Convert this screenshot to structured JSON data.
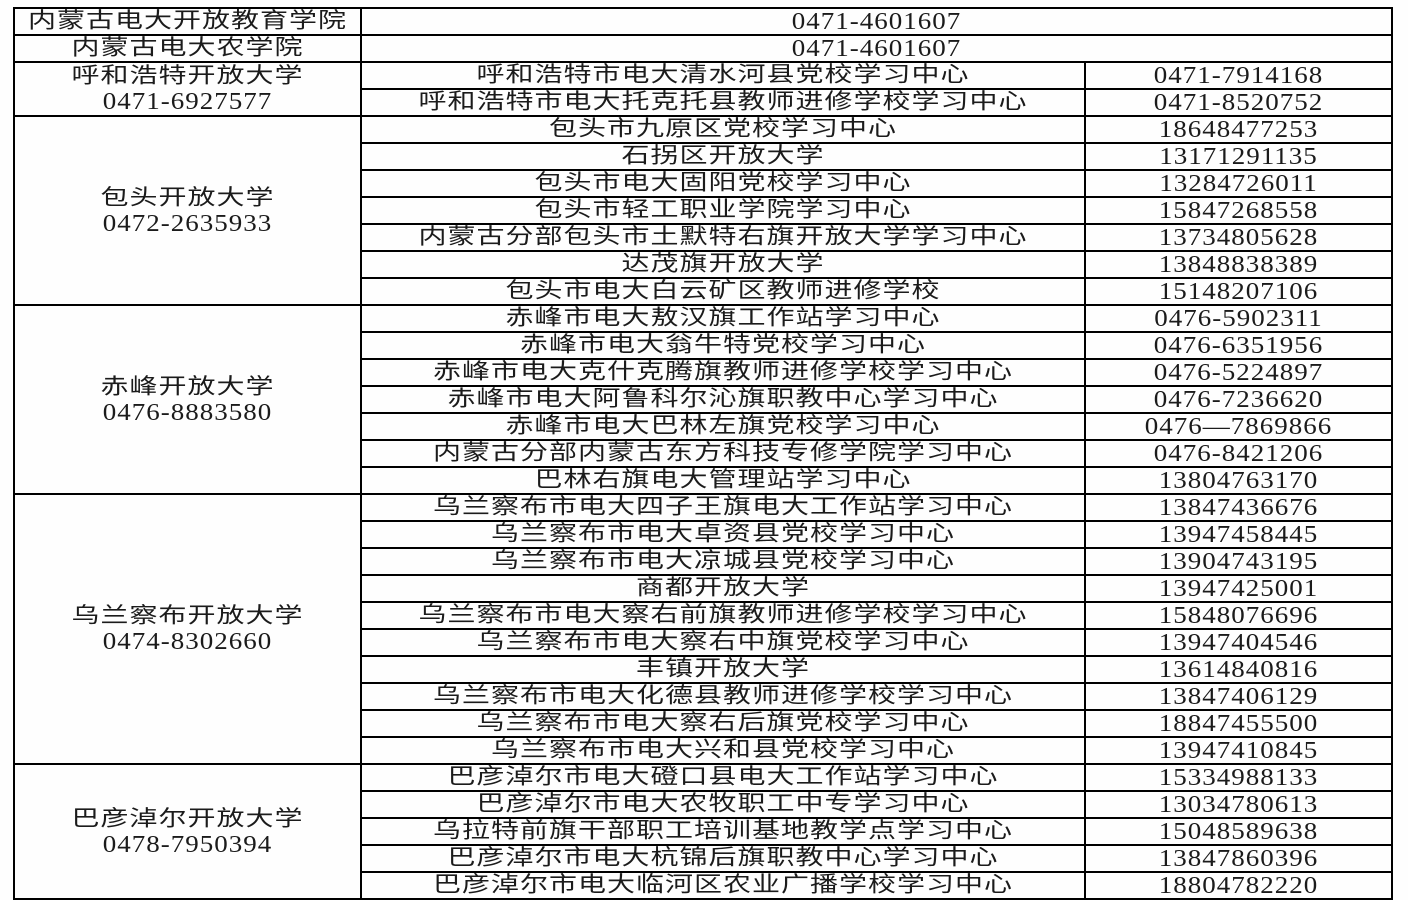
{
  "table": {
    "top_rows": [
      {
        "name": "内蒙古电大开放教育学院",
        "phone": "0471-4601607"
      },
      {
        "name": "内蒙古电大农学院",
        "phone": "0471-4601607"
      }
    ],
    "groups": [
      {
        "name": "呼和浩特开放大学",
        "phone": "0471-6927577",
        "centers": [
          {
            "name": "呼和浩特市电大清水河县党校学习中心",
            "phone": "0471-7914168"
          },
          {
            "name": "呼和浩特市电大托克托县教师进修学校学习中心",
            "phone": "0471-8520752"
          }
        ]
      },
      {
        "name": "包头开放大学",
        "phone": "0472-2635933",
        "centers": [
          {
            "name": "包头市九原区党校学习中心",
            "phone": "18648477253"
          },
          {
            "name": "石拐区开放大学",
            "phone": "13171291135"
          },
          {
            "name": "包头市电大固阳党校学习中心",
            "phone": "13284726011"
          },
          {
            "name": "包头市轻工职业学院学习中心",
            "phone": "15847268558"
          },
          {
            "name": "内蒙古分部包头市土默特右旗开放大学学习中心",
            "phone": "13734805628"
          },
          {
            "name": "达茂旗开放大学",
            "phone": "13848838389"
          },
          {
            "name": "包头市电大白云矿区教师进修学校",
            "phone": "15148207106"
          }
        ]
      },
      {
        "name": "赤峰开放大学",
        "phone": "0476-8883580",
        "centers": [
          {
            "name": "赤峰市电大敖汉旗工作站学习中心",
            "phone": "0476-5902311"
          },
          {
            "name": "赤峰市电大翁牛特党校学习中心",
            "phone": "0476-6351956"
          },
          {
            "name": "赤峰市电大克什克腾旗教师进修学校学习中心",
            "phone": "0476-5224897"
          },
          {
            "name": "赤峰市电大阿鲁科尔沁旗职教中心学习中心",
            "phone": "0476-7236620"
          },
          {
            "name": "赤峰市电大巴林左旗党校学习中心",
            "phone": "0476—7869866"
          },
          {
            "name": "内蒙古分部内蒙古东方科技专修学院学习中心",
            "phone": "0476-8421206"
          },
          {
            "name": "巴林右旗电大管理站学习中心",
            "phone": "13804763170"
          }
        ]
      },
      {
        "name": "乌兰察布开放大学",
        "phone": "0474-8302660",
        "centers": [
          {
            "name": "乌兰察布市电大四子王旗电大工作站学习中心",
            "phone": "13847436676"
          },
          {
            "name": "乌兰察布市电大卓资县党校学习中心",
            "phone": "13947458445"
          },
          {
            "name": "乌兰察布市电大凉城县党校学习中心",
            "phone": "13904743195"
          },
          {
            "name": "商都开放大学",
            "phone": "13947425001"
          },
          {
            "name": "乌兰察布市电大察右前旗教师进修学校学习中心",
            "phone": "15848076696"
          },
          {
            "name": "乌兰察布市电大察右中旗党校学习中心",
            "phone": "13947404546"
          },
          {
            "name": "丰镇开放大学",
            "phone": "13614840816"
          },
          {
            "name": "乌兰察布市电大化德县教师进修学校学习中心",
            "phone": "13847406129"
          },
          {
            "name": "乌兰察布市电大察右后旗党校学习中心",
            "phone": "18847455500"
          },
          {
            "name": "乌兰察布市电大兴和县党校学习中心",
            "phone": "13947410845"
          }
        ]
      },
      {
        "name": "巴彦淖尔开放大学",
        "phone": "0478-7950394",
        "centers": [
          {
            "name": "巴彦淖尔市电大磴口县电大工作站学习中心",
            "phone": "15334988133"
          },
          {
            "name": "巴彦淖尔市电大农牧职工中专学习中心",
            "phone": "13034780613"
          },
          {
            "name": "乌拉特前旗干部职工培训基地教学点学习中心",
            "phone": "15048589638"
          },
          {
            "name": "巴彦淖尔市电大杭锦后旗职教中心学习中心",
            "phone": "13847860396"
          },
          {
            "name": "巴彦淖尔市电大临河区农业广播学校学习中心",
            "phone": "18804782220"
          }
        ]
      }
    ]
  }
}
